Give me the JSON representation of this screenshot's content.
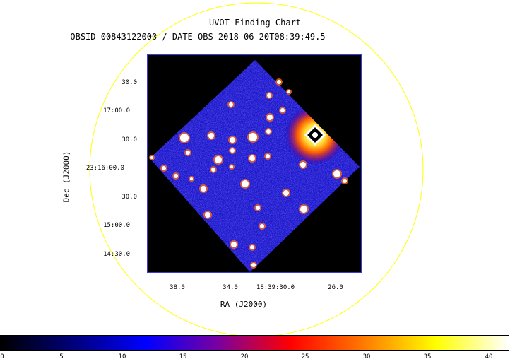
{
  "title": "UVOT Finding Chart",
  "subtitle": "OBSID 00843122000 / DATE-OBS 2018-06-20T08:39:49.5",
  "axes": {
    "ylabel": "Dec (J2000)",
    "xlabel": "RA (J2000)",
    "y_ticks": [
      "30.0",
      "17:00.0",
      "30.0",
      "23:16:00.0",
      "30.0",
      "15:00.0",
      "14:30.0"
    ],
    "x_ticks": [
      "38.0",
      "34.0",
      "18:39:30.0",
      "26.0"
    ]
  },
  "colorbar": {
    "ticks": [
      "0",
      "5",
      "10",
      "15",
      "20",
      "25",
      "30",
      "35",
      "40"
    ],
    "colors": [
      "#000000",
      "#00007a",
      "#0000ff",
      "#7a00a0",
      "#ff0000",
      "#ff7a00",
      "#ffff00",
      "#ffffff"
    ]
  },
  "colors": {
    "circle": "#ffff00",
    "frame": "#3b3bd6",
    "background": "#000000"
  }
}
